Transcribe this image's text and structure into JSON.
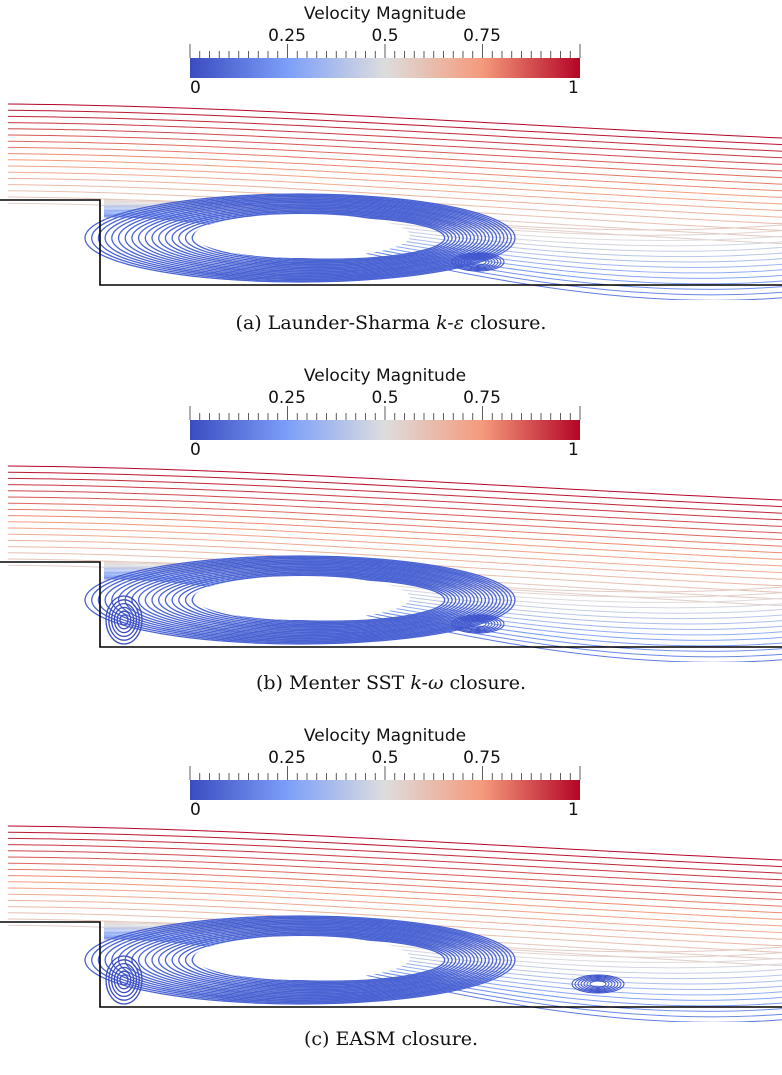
{
  "colorbar": {
    "title": "Velocity Magnitude",
    "tick_labels": [
      "0.25",
      "0.5",
      "0.75"
    ],
    "min_label": "0",
    "max_label": "1",
    "range": [
      0,
      1
    ],
    "colormap": [
      "#3b4cc0",
      "#7c9ff9",
      "#dddddd",
      "#f49a7b",
      "#b40426"
    ]
  },
  "panels": [
    {
      "caption": "(a) Launder-Sharma k-ε closure.",
      "caption_parts": {
        "prefix": "(a) Launder-Sharma ",
        "italic": "k-ε",
        "suffix": " closure."
      },
      "corner_vortex": false
    },
    {
      "caption": "(b) Menter SST k-ω closure.",
      "caption_parts": {
        "prefix": "(b) Menter SST ",
        "italic": "k-ω",
        "suffix": " closure."
      },
      "corner_vortex": true
    },
    {
      "caption": "(c) EASM closure.",
      "caption_parts": {
        "prefix": "(c) EASM closure.",
        "italic": "",
        "suffix": ""
      },
      "corner_vortex": true
    }
  ]
}
